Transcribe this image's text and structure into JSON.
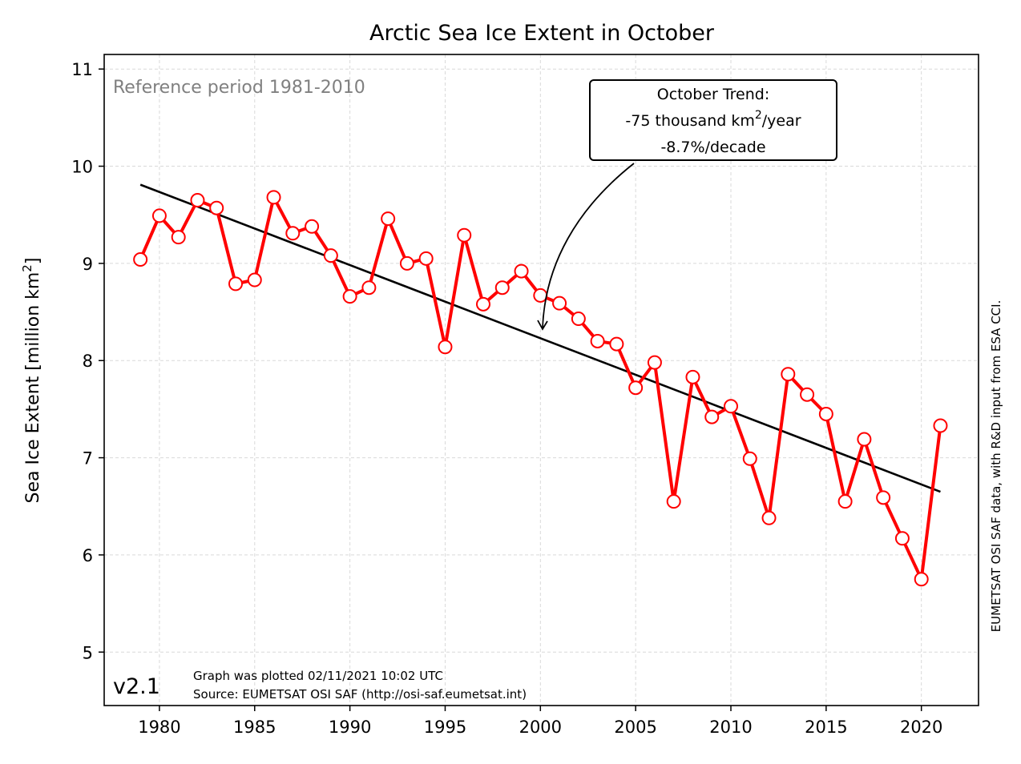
{
  "chart_data": {
    "type": "line",
    "title": "Arctic Sea Ice Extent in October",
    "xlabel": "",
    "ylabel_main": "Sea Ice Extent [million km",
    "ylabel_sup": "2",
    "ylabel_end": "]",
    "xlim": [
      1977.1,
      2023.0
    ],
    "ylim": [
      4.45,
      11.15
    ],
    "x_ticks": [
      1980,
      1985,
      1990,
      1995,
      2000,
      2005,
      2010,
      2015,
      2020
    ],
    "y_ticks": [
      5,
      6,
      7,
      8,
      9,
      10,
      11
    ],
    "grid": true,
    "series": [
      {
        "color": "#ff0000",
        "x": [
          1979,
          1980,
          1981,
          1982,
          1983,
          1984,
          1985,
          1986,
          1987,
          1988,
          1989,
          1990,
          1991,
          1992,
          1993,
          1994,
          1995,
          1996,
          1997,
          1998,
          1999,
          2000,
          2001,
          2002,
          2003,
          2004,
          2005,
          2006,
          2007,
          2008,
          2009,
          2010,
          2011,
          2012,
          2013,
          2014,
          2015,
          2016,
          2017,
          2018,
          2019,
          2020,
          2021
        ],
        "values": [
          9.04,
          9.49,
          9.27,
          9.65,
          9.57,
          8.79,
          8.83,
          9.68,
          9.31,
          9.38,
          9.08,
          8.66,
          8.75,
          9.46,
          9.0,
          9.05,
          8.14,
          9.29,
          8.58,
          8.75,
          8.92,
          8.67,
          8.59,
          8.43,
          8.2,
          8.17,
          7.72,
          7.98,
          6.55,
          7.83,
          7.42,
          7.53,
          6.99,
          6.38,
          7.86,
          7.65,
          7.45,
          6.55,
          7.19,
          6.59,
          6.17,
          5.75,
          7.33
        ]
      }
    ],
    "trend": {
      "color": "#000000",
      "x": [
        1979,
        2021
      ],
      "values": [
        9.81,
        6.65
      ]
    },
    "trend_box": {
      "line1": "October Trend:",
      "line2_pre": "-75 thousand km",
      "line2_sup": "2",
      "line2_post": "/year",
      "line3": "-8.7%/decade"
    },
    "reference_text": "Reference period 1981-2010",
    "version": "v2.1",
    "plotted_note": "Graph was plotted 02/11/2021 10:02 UTC",
    "source_note": "Source: EUMETSAT OSI SAF (http://osi-saf.eumetsat.int)",
    "side_note": "EUMETSAT OSI SAF data, with R&D input from ESA CCI."
  }
}
